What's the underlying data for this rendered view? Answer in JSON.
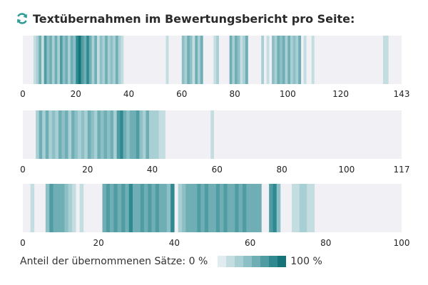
{
  "title": "Textübernahmen im Bewertungsbericht pro Seite:",
  "icon": "refresh-icon",
  "colors": {
    "background": "#f1f1f5",
    "scale": [
      "#e0ecef",
      "#c4dde1",
      "#a8cfd4",
      "#8cc0c6",
      "#6faeb4",
      "#4f9da3",
      "#2e8a90",
      "#157479"
    ]
  },
  "legend": {
    "prefix": "Anteil der übernommenen Sätze: 0 %",
    "suffix": "100 %",
    "swatches": [
      "#e0ecef",
      "#c4dde1",
      "#a8cfd4",
      "#8cc0c6",
      "#6faeb4",
      "#4f9da3",
      "#2e8a90",
      "#157479"
    ]
  },
  "chart_data": [
    {
      "type": "heatmap",
      "xlim": [
        0,
        143
      ],
      "ticks": [
        "0",
        "20",
        "40",
        "60",
        "80",
        "100",
        "120",
        "143"
      ],
      "tick_values": [
        0,
        20,
        40,
        60,
        80,
        100,
        120,
        143
      ],
      "pages": [
        {
          "p": 5,
          "v": 0.15
        },
        {
          "p": 6,
          "v": 0.3
        },
        {
          "p": 7,
          "v": 0.55
        },
        {
          "p": 8,
          "v": 0.2
        },
        {
          "p": 9,
          "v": 0.7
        },
        {
          "p": 10,
          "v": 0.45
        },
        {
          "p": 11,
          "v": 0.6
        },
        {
          "p": 12,
          "v": 0.25
        },
        {
          "p": 13,
          "v": 0.5
        },
        {
          "p": 14,
          "v": 0.35
        },
        {
          "p": 15,
          "v": 0.65
        },
        {
          "p": 16,
          "v": 0.4
        },
        {
          "p": 17,
          "v": 0.55
        },
        {
          "p": 18,
          "v": 0.3
        },
        {
          "p": 19,
          "v": 0.6
        },
        {
          "p": 20,
          "v": 0.45
        },
        {
          "p": 21,
          "v": 0.85
        },
        {
          "p": 22,
          "v": 0.95
        },
        {
          "p": 23,
          "v": 0.75
        },
        {
          "p": 24,
          "v": 0.6
        },
        {
          "p": 25,
          "v": 0.9
        },
        {
          "p": 26,
          "v": 0.5
        },
        {
          "p": 27,
          "v": 0.3
        },
        {
          "p": 28,
          "v": 0.55
        },
        {
          "p": 29,
          "v": 0.2
        },
        {
          "p": 30,
          "v": 0.45
        },
        {
          "p": 31,
          "v": 0.35
        },
        {
          "p": 32,
          "v": 0.5
        },
        {
          "p": 33,
          "v": 0.25
        },
        {
          "p": 34,
          "v": 0.4
        },
        {
          "p": 35,
          "v": 0.3
        },
        {
          "p": 36,
          "v": 0.55
        },
        {
          "p": 37,
          "v": 0.35
        },
        {
          "p": 38,
          "v": 0.2
        },
        {
          "p": 55,
          "v": 0.15
        },
        {
          "p": 61,
          "v": 0.45
        },
        {
          "p": 62,
          "v": 0.3
        },
        {
          "p": 63,
          "v": 0.6
        },
        {
          "p": 64,
          "v": 0.4
        },
        {
          "p": 65,
          "v": 0.2
        },
        {
          "p": 66,
          "v": 0.55
        },
        {
          "p": 67,
          "v": 0.35
        },
        {
          "p": 68,
          "v": 0.5
        },
        {
          "p": 73,
          "v": 0.15
        },
        {
          "p": 74,
          "v": 0.25
        },
        {
          "p": 79,
          "v": 0.55
        },
        {
          "p": 80,
          "v": 0.3
        },
        {
          "p": 81,
          "v": 0.6
        },
        {
          "p": 82,
          "v": 0.4
        },
        {
          "p": 83,
          "v": 0.2
        },
        {
          "p": 84,
          "v": 0.35
        },
        {
          "p": 85,
          "v": 0.5
        },
        {
          "p": 91,
          "v": 0.25
        },
        {
          "p": 93,
          "v": 0.15
        },
        {
          "p": 95,
          "v": 0.4
        },
        {
          "p": 96,
          "v": 0.3
        },
        {
          "p": 97,
          "v": 0.55
        },
        {
          "p": 98,
          "v": 0.45
        },
        {
          "p": 99,
          "v": 0.6
        },
        {
          "p": 100,
          "v": 0.35
        },
        {
          "p": 101,
          "v": 0.5
        },
        {
          "p": 102,
          "v": 0.25
        },
        {
          "p": 103,
          "v": 0.4
        },
        {
          "p": 104,
          "v": 0.3
        },
        {
          "p": 105,
          "v": 0.55
        },
        {
          "p": 107,
          "v": 0.2
        },
        {
          "p": 110,
          "v": 0.15
        },
        {
          "p": 137,
          "v": 0.15
        },
        {
          "p": 138,
          "v": 0.2
        }
      ]
    },
    {
      "type": "heatmap",
      "xlim": [
        0,
        117
      ],
      "ticks": [
        "0",
        "20",
        "40",
        "60",
        "80",
        "100",
        "117"
      ],
      "tick_values": [
        0,
        20,
        40,
        60,
        80,
        100,
        117
      ],
      "pages": [
        {
          "p": 5,
          "v": 0.3
        },
        {
          "p": 6,
          "v": 0.55
        },
        {
          "p": 7,
          "v": 0.35
        },
        {
          "p": 8,
          "v": 0.5
        },
        {
          "p": 9,
          "v": 0.25
        },
        {
          "p": 10,
          "v": 0.45
        },
        {
          "p": 11,
          "v": 0.3
        },
        {
          "p": 12,
          "v": 0.6
        },
        {
          "p": 13,
          "v": 0.4
        },
        {
          "p": 14,
          "v": 0.5
        },
        {
          "p": 15,
          "v": 0.3
        },
        {
          "p": 16,
          "v": 0.55
        },
        {
          "p": 17,
          "v": 0.4
        },
        {
          "p": 18,
          "v": 0.25
        },
        {
          "p": 19,
          "v": 0.45
        },
        {
          "p": 20,
          "v": 0.35
        },
        {
          "p": 21,
          "v": 0.55
        },
        {
          "p": 22,
          "v": 0.4
        },
        {
          "p": 23,
          "v": 0.3
        },
        {
          "p": 24,
          "v": 0.5
        },
        {
          "p": 25,
          "v": 0.45
        },
        {
          "p": 26,
          "v": 0.6
        },
        {
          "p": 27,
          "v": 0.4
        },
        {
          "p": 28,
          "v": 0.55
        },
        {
          "p": 29,
          "v": 0.35
        },
        {
          "p": 30,
          "v": 0.65
        },
        {
          "p": 31,
          "v": 0.9
        },
        {
          "p": 32,
          "v": 0.6
        },
        {
          "p": 33,
          "v": 0.45
        },
        {
          "p": 34,
          "v": 0.55
        },
        {
          "p": 35,
          "v": 0.5
        },
        {
          "p": 36,
          "v": 0.65
        },
        {
          "p": 37,
          "v": 0.4
        },
        {
          "p": 38,
          "v": 0.3
        },
        {
          "p": 39,
          "v": 0.5
        },
        {
          "p": 40,
          "v": 0.35
        },
        {
          "p": 41,
          "v": 0.25
        },
        {
          "p": 42,
          "v": 0.3
        },
        {
          "p": 43,
          "v": 0.2
        },
        {
          "p": 44,
          "v": 0.15
        },
        {
          "p": 59,
          "v": 0.12
        }
      ]
    },
    {
      "type": "heatmap",
      "xlim": [
        0,
        100
      ],
      "ticks": [
        "0",
        "20",
        "40",
        "60",
        "80",
        "100"
      ],
      "tick_values": [
        0,
        20,
        40,
        60,
        80,
        100
      ],
      "pages": [
        {
          "p": 3,
          "v": 0.15
        },
        {
          "p": 7,
          "v": 0.4
        },
        {
          "p": 8,
          "v": 0.65
        },
        {
          "p": 9,
          "v": 0.5
        },
        {
          "p": 10,
          "v": 0.6
        },
        {
          "p": 11,
          "v": 0.55
        },
        {
          "p": 12,
          "v": 0.45
        },
        {
          "p": 13,
          "v": 0.3
        },
        {
          "p": 14,
          "v": 0.2
        },
        {
          "p": 16,
          "v": 0.12
        },
        {
          "p": 22,
          "v": 0.6
        },
        {
          "p": 23,
          "v": 0.75
        },
        {
          "p": 24,
          "v": 0.55
        },
        {
          "p": 25,
          "v": 0.7
        },
        {
          "p": 26,
          "v": 0.5
        },
        {
          "p": 27,
          "v": 0.65
        },
        {
          "p": 28,
          "v": 0.55
        },
        {
          "p": 29,
          "v": 0.8
        },
        {
          "p": 30,
          "v": 0.6
        },
        {
          "p": 31,
          "v": 0.5
        },
        {
          "p": 32,
          "v": 0.75
        },
        {
          "p": 33,
          "v": 0.55
        },
        {
          "p": 34,
          "v": 0.65
        },
        {
          "p": 35,
          "v": 0.5
        },
        {
          "p": 36,
          "v": 0.7
        },
        {
          "p": 37,
          "v": 0.55
        },
        {
          "p": 38,
          "v": 0.6
        },
        {
          "p": 39,
          "v": 0.45
        },
        {
          "p": 40,
          "v": 0.85
        },
        {
          "p": 42,
          "v": 0.3
        },
        {
          "p": 43,
          "v": 0.45
        },
        {
          "p": 44,
          "v": 0.5
        },
        {
          "p": 45,
          "v": 0.6
        },
        {
          "p": 46,
          "v": 0.55
        },
        {
          "p": 47,
          "v": 0.65
        },
        {
          "p": 48,
          "v": 0.5
        },
        {
          "p": 49,
          "v": 0.7
        },
        {
          "p": 50,
          "v": 0.6
        },
        {
          "p": 51,
          "v": 0.55
        },
        {
          "p": 52,
          "v": 0.65
        },
        {
          "p": 53,
          "v": 0.5
        },
        {
          "p": 54,
          "v": 0.75
        },
        {
          "p": 55,
          "v": 0.6
        },
        {
          "p": 56,
          "v": 0.55
        },
        {
          "p": 57,
          "v": 0.7
        },
        {
          "p": 58,
          "v": 0.5
        },
        {
          "p": 59,
          "v": 0.65
        },
        {
          "p": 60,
          "v": 0.55
        },
        {
          "p": 61,
          "v": 0.6
        },
        {
          "p": 62,
          "v": 0.5
        },
        {
          "p": 63,
          "v": 0.55
        },
        {
          "p": 66,
          "v": 0.65
        },
        {
          "p": 67,
          "v": 0.8
        },
        {
          "p": 68,
          "v": 0.4
        },
        {
          "p": 72,
          "v": 0.15
        },
        {
          "p": 73,
          "v": 0.2
        },
        {
          "p": 74,
          "v": 0.25
        },
        {
          "p": 75,
          "v": 0.3
        },
        {
          "p": 76,
          "v": 0.2
        },
        {
          "p": 77,
          "v": 0.15
        }
      ]
    }
  ]
}
